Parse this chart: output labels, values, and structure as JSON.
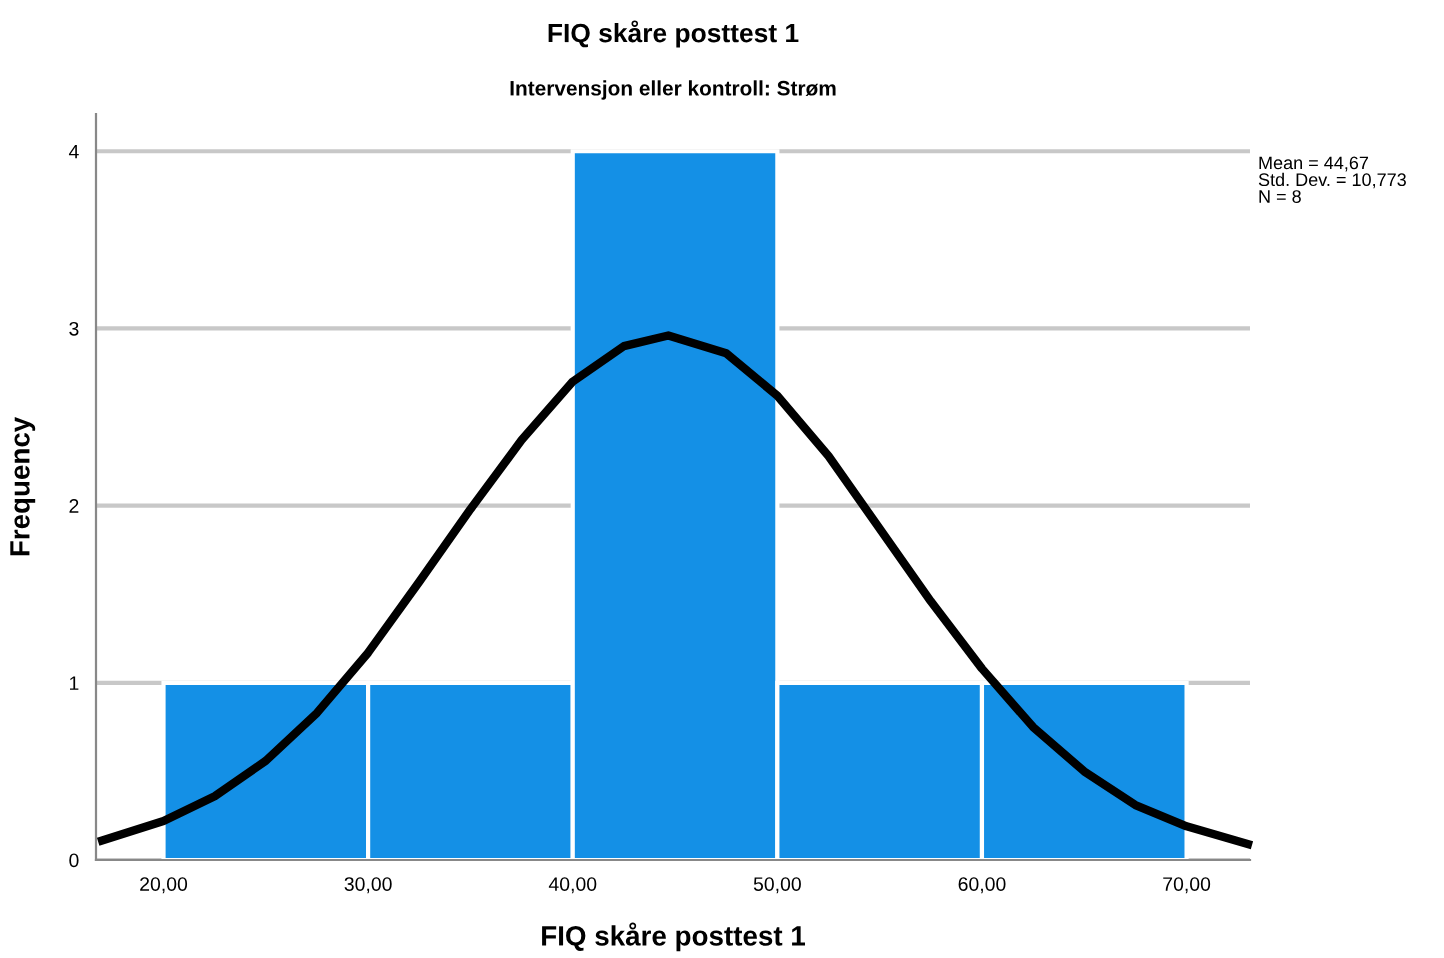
{
  "chart_data": {
    "type": "histogram",
    "title": "FIQ skåre posttest 1",
    "subtitle": "Intervensjon eller kontroll: Strøm",
    "xlabel": "FIQ skåre posttest 1",
    "ylabel": "Frequency",
    "bins": [
      20,
      30,
      40,
      50,
      60,
      70
    ],
    "values": [
      1,
      1,
      4,
      1,
      1
    ],
    "color": "#1490e6",
    "series": [
      {
        "type": "line",
        "color": "#000000",
        "x": [
          17,
          20,
          22.5,
          25,
          27.5,
          30,
          32.5,
          35,
          37.5,
          40,
          42.5,
          44.67,
          47.5,
          50,
          52.5,
          55,
          57.5,
          60,
          62.5,
          65,
          67.5,
          70,
          73
        ],
        "values": [
          0.11,
          0.22,
          0.36,
          0.56,
          0.83,
          1.17,
          1.57,
          1.98,
          2.37,
          2.7,
          2.9,
          2.96,
          2.86,
          2.62,
          2.28,
          1.87,
          1.46,
          1.08,
          0.75,
          0.5,
          0.31,
          0.19,
          0.09
        ]
      }
    ],
    "xlim": [
      16.7,
      73.1
    ],
    "ylim": [
      0,
      4.21
    ],
    "xticks": [
      {
        "value": 20,
        "label": "20,00"
      },
      {
        "value": 30,
        "label": "30,00"
      },
      {
        "value": 40,
        "label": "40,00"
      },
      {
        "value": 50,
        "label": "50,00"
      },
      {
        "value": 60,
        "label": "60,00"
      },
      {
        "value": 70,
        "label": "70,00"
      }
    ],
    "yticks": [
      0,
      1,
      2,
      3,
      4
    ],
    "grid": "y",
    "annotations": [
      "Mean = 44,67\nStd. Dev. = 10,773\nN = 8"
    ]
  }
}
